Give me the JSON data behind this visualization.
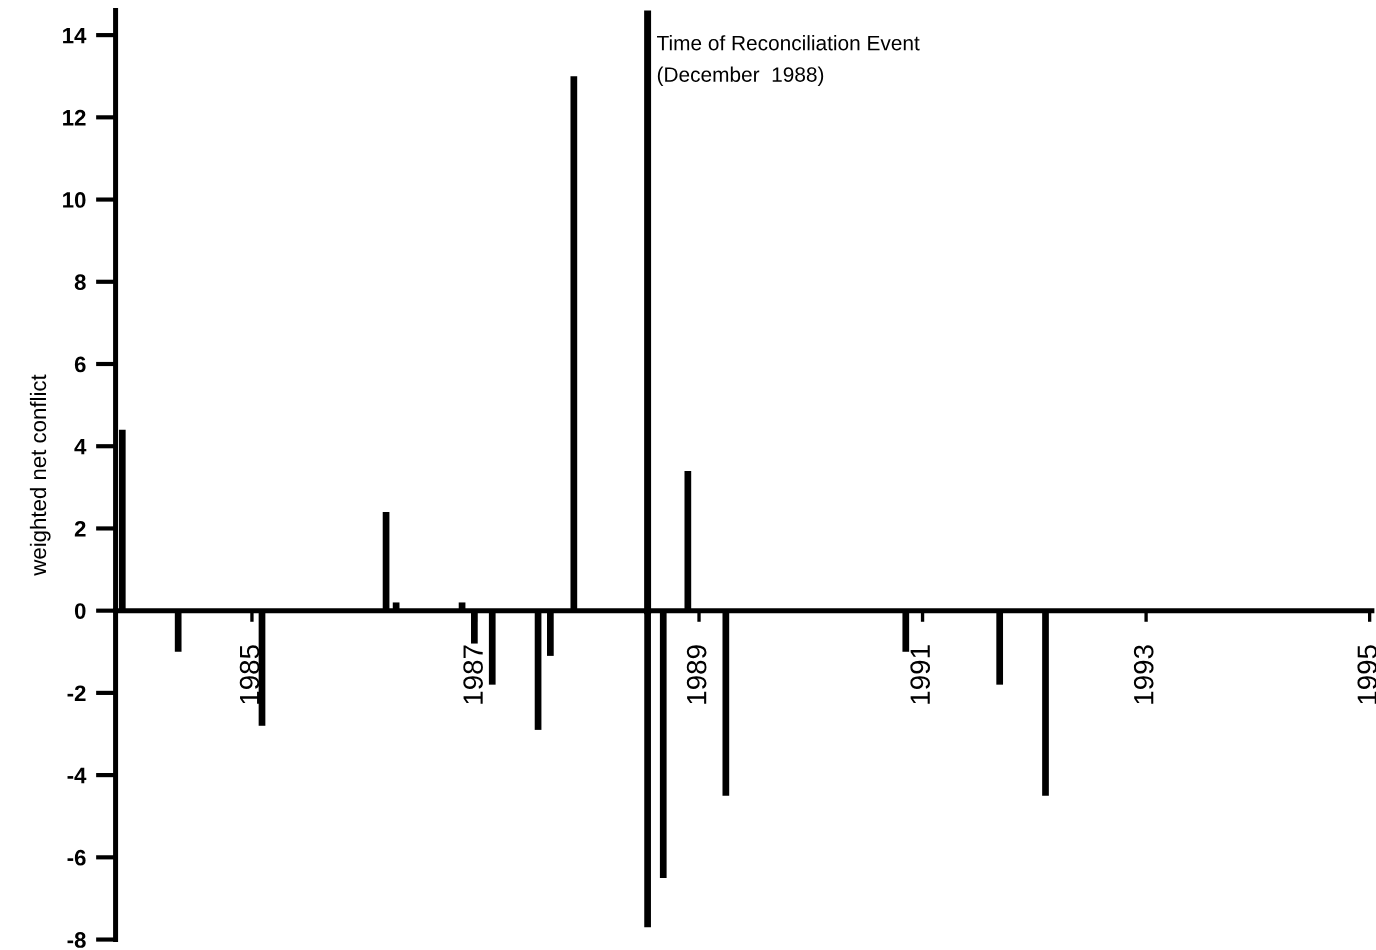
{
  "chart_data": {
    "type": "bar",
    "ylabel": "weighted net conflict",
    "x": [
      1983.84,
      1984.34,
      1985.09,
      1986.2,
      1986.29,
      1986.88,
      1986.99,
      1987.15,
      1987.56,
      1987.67,
      1987.88,
      1988.54,
      1988.68,
      1988.9,
      1989.24,
      1990.85,
      1991.69,
      1992.1
    ],
    "values": [
      4.4,
      -1.0,
      -2.8,
      2.4,
      0.2,
      0.2,
      -0.8,
      -1.8,
      -2.9,
      -1.1,
      13.0,
      -7.7,
      -6.5,
      3.4,
      -4.5,
      -1.0,
      -1.8,
      -4.5
    ],
    "color": "#000000",
    "xlim": [
      1983.78,
      1995.02
    ],
    "xticks": [
      1985,
      1987,
      1989,
      1991,
      1993,
      1995
    ],
    "ylim": [
      -8,
      14.6
    ],
    "yticks": [
      -8,
      -6,
      -4,
      -2,
      0,
      2,
      4,
      6,
      8,
      10,
      12,
      14
    ],
    "ref_lines": [
      {
        "axis": "x",
        "value": 1988.54,
        "label": "Time of Reconciliation Event\n(December  1988)",
        "color": "#000000"
      }
    ],
    "grid": false
  }
}
